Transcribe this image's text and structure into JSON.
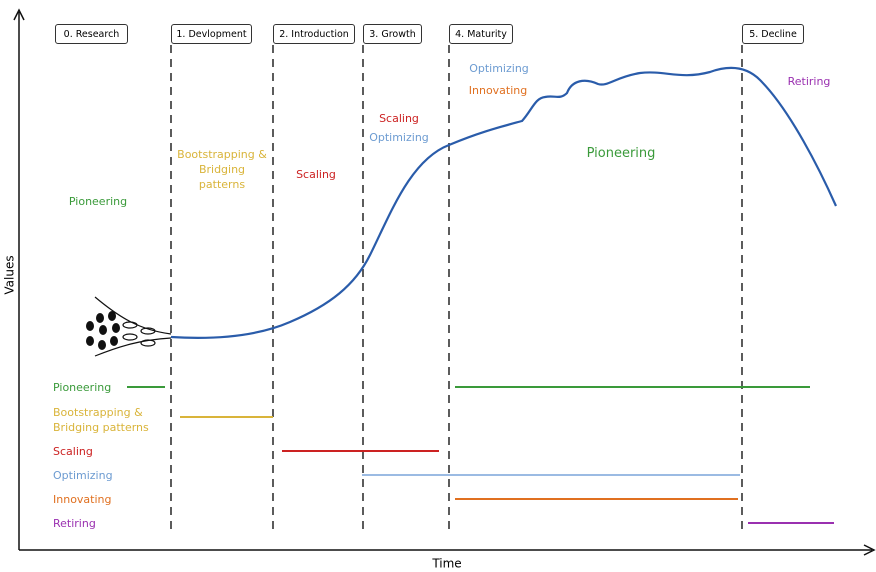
{
  "axes": {
    "y_label": "Values",
    "x_label": "Time"
  },
  "phases": [
    "0. Research",
    "1. Devlopment",
    "2. Introduction",
    "3. Growth",
    "4. Maturity",
    "5. Decline"
  ],
  "annotations": [
    "Pioneering",
    "Bootstrapping & Bridging patterns",
    "Scaling",
    "Scaling",
    "Optimizing",
    "Optimizing",
    "Innovating",
    "Pioneering",
    "Retiring"
  ],
  "legend": [
    "Pioneering",
    "Bootstrapping & Bridging patterns",
    "Scaling",
    "Optimizing",
    "Innovating",
    "Retiring"
  ]
}
